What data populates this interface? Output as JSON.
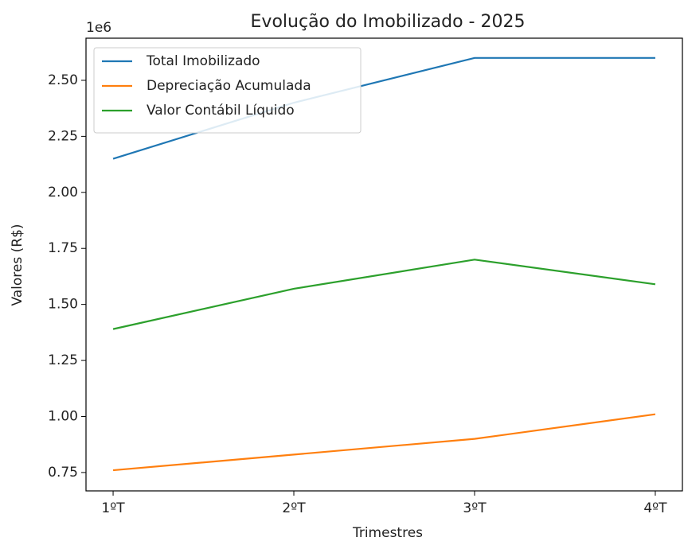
{
  "chart_data": {
    "type": "line",
    "title": "Evolução do Imobilizado - 2025",
    "x_label": "Trimestres",
    "y_label": "Valores (R$)",
    "y_offset_label": "1e6",
    "categories": [
      "1ºT",
      "2ºT",
      "3ºT",
      "4ºT"
    ],
    "series": [
      {
        "name": "Total Imobilizado",
        "color": "#1f77b4",
        "values": [
          2150000,
          2400000,
          2600000,
          2600000
        ]
      },
      {
        "name": "Depreciação Acumulada",
        "color": "#ff7f0e",
        "values": [
          760000,
          830000,
          900000,
          1010000
        ]
      },
      {
        "name": "Valor Contábil Líquido",
        "color": "#2ca02c",
        "values": [
          1390000,
          1570000,
          1700000,
          1590000
        ]
      }
    ],
    "ylim": [
      668000,
      2688000
    ],
    "yticks": [
      {
        "value": 750000,
        "label": "0.75"
      },
      {
        "value": 1000000,
        "label": "1.00"
      },
      {
        "value": 1250000,
        "label": "1.25"
      },
      {
        "value": 1500000,
        "label": "1.50"
      },
      {
        "value": 1750000,
        "label": "1.75"
      },
      {
        "value": 2000000,
        "label": "2.00"
      },
      {
        "value": 2250000,
        "label": "2.25"
      },
      {
        "value": 2500000,
        "label": "2.50"
      }
    ],
    "legend": "upper left",
    "grid": false
  }
}
